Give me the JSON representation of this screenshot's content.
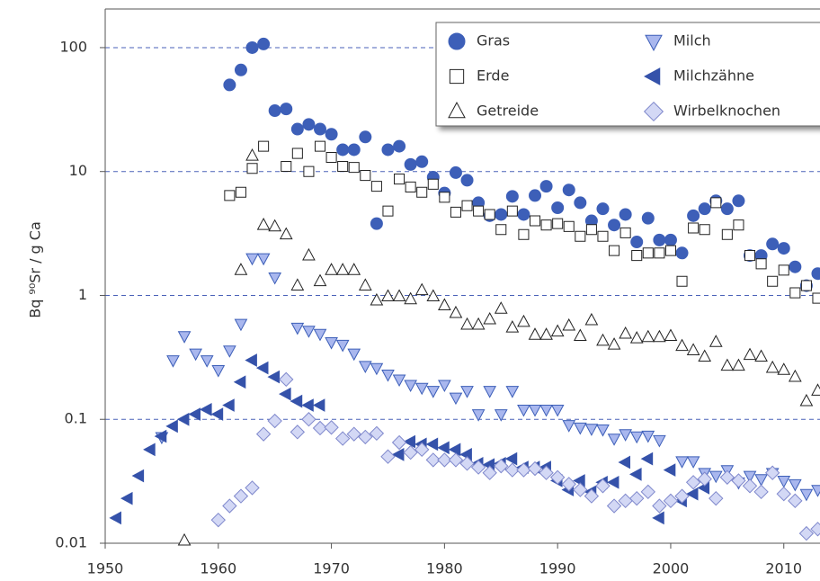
{
  "chart_data": {
    "type": "scatter",
    "y_label": "Bq ⁹⁰Sr / g Ca",
    "log_y": true,
    "grid": true,
    "legend": "upper right",
    "xlim": [
      1950,
      2013.2
    ],
    "xticks": [
      1950,
      1960,
      1970,
      1980,
      1990,
      2000,
      2010
    ],
    "ylim": [
      0.01,
      205
    ],
    "yticks": [
      0.01,
      0.1,
      1,
      10,
      100
    ],
    "series": [
      {
        "name": "Gras",
        "marker": "circle",
        "color": "#3d5fb8",
        "x": [
          1961,
          1962,
          1963,
          1964,
          1965,
          1966,
          1967,
          1968,
          1969,
          1970,
          1971,
          1972,
          1973,
          1974,
          1975,
          1976,
          1977,
          1978,
          1979,
          1980,
          1981,
          1982,
          1983,
          1984,
          1985,
          1986,
          1987,
          1988,
          1989,
          1990,
          1991,
          1992,
          1993,
          1994,
          1995,
          1996,
          1997,
          1998,
          1999,
          2000,
          2001,
          2002,
          2003,
          2004,
          2005,
          2006,
          2007,
          2008,
          2009,
          2010,
          2011,
          2012,
          2013
        ],
        "values": [
          50,
          66,
          100,
          107,
          31,
          32,
          22,
          24,
          22,
          20,
          15,
          15,
          19,
          3.8,
          15,
          16,
          11.4,
          12,
          9,
          6.7,
          9.8,
          8.5,
          5.6,
          4.4,
          4.5,
          6.3,
          4.5,
          6.4,
          7.6,
          5.1,
          7.1,
          5.6,
          4.0,
          5.0,
          3.7,
          4.5,
          2.7,
          4.2,
          2.8,
          2.8,
          2.2,
          4.4,
          5.0,
          5.8,
          5.0,
          5.8,
          2.1,
          2.1,
          2.6,
          2.4,
          1.7,
          1.2,
          1.5
        ]
      },
      {
        "name": "Erde",
        "marker": "square",
        "color": "#ffffff",
        "x": [
          1961,
          1962,
          1963,
          1964,
          1966,
          1967,
          1968,
          1969,
          1970,
          1971,
          1972,
          1973,
          1974,
          1975,
          1976,
          1977,
          1978,
          1979,
          1980,
          1981,
          1982,
          1983,
          1984,
          1985,
          1986,
          1987,
          1988,
          1989,
          1990,
          1991,
          1992,
          1993,
          1994,
          1995,
          1996,
          1997,
          1998,
          1999,
          2000,
          2001,
          2002,
          2003,
          2004,
          2005,
          2006,
          2007,
          2008,
          2009,
          2010,
          2011,
          2012,
          2013
        ],
        "values": [
          6.4,
          6.8,
          10.6,
          16,
          11,
          14,
          10,
          16,
          13,
          11,
          10.8,
          9.3,
          7.6,
          4.8,
          8.7,
          7.5,
          6.8,
          7.9,
          6.2,
          4.7,
          5.3,
          4.8,
          4.5,
          3.4,
          4.8,
          3.1,
          4.0,
          3.7,
          3.8,
          3.6,
          3.0,
          3.4,
          3.0,
          2.3,
          3.2,
          2.1,
          2.2,
          2.2,
          2.3,
          1.3,
          3.5,
          3.4,
          5.6,
          3.1,
          3.7,
          2.1,
          1.8,
          1.3,
          1.6,
          1.05,
          1.2,
          0.95
        ]
      },
      {
        "name": "Getreide",
        "marker": "triangle-up",
        "color": "#ffffff",
        "x": [
          1957,
          1962,
          1963,
          1964,
          1965,
          1966,
          1967,
          1968,
          1969,
          1970,
          1971,
          1972,
          1973,
          1974,
          1975,
          1976,
          1977,
          1978,
          1979,
          1980,
          1981,
          1982,
          1983,
          1984,
          1985,
          1986,
          1987,
          1988,
          1989,
          1990,
          1991,
          1992,
          1993,
          1994,
          1995,
          1996,
          1997,
          1998,
          1999,
          2000,
          2001,
          2002,
          2003,
          2004,
          2005,
          2006,
          2007,
          2008,
          2009,
          2010,
          2011,
          2012,
          2013
        ],
        "values": [
          0.0105,
          1.6,
          13.4,
          3.7,
          3.6,
          3.1,
          1.2,
          2.1,
          1.3,
          1.6,
          1.6,
          1.6,
          1.2,
          0.91,
          0.98,
          0.98,
          0.93,
          1.1,
          0.98,
          0.83,
          0.72,
          0.58,
          0.58,
          0.64,
          0.78,
          0.55,
          0.61,
          0.48,
          0.48,
          0.51,
          0.57,
          0.47,
          0.63,
          0.43,
          0.4,
          0.49,
          0.45,
          0.46,
          0.46,
          0.47,
          0.39,
          0.36,
          0.32,
          0.42,
          0.27,
          0.27,
          0.33,
          0.32,
          0.26,
          0.25,
          0.22,
          0.14,
          0.17
        ]
      },
      {
        "name": "Milch",
        "marker": "triangle-down",
        "color": "#a9b7ee",
        "x": [
          1955,
          1956,
          1957,
          1958,
          1959,
          1960,
          1961,
          1962,
          1963,
          1964,
          1965,
          1967,
          1968,
          1969,
          1970,
          1971,
          1972,
          1973,
          1974,
          1975,
          1976,
          1977,
          1978,
          1979,
          1980,
          1981,
          1982,
          1983,
          1984,
          1985,
          1986,
          1987,
          1988,
          1989,
          1990,
          1991,
          1992,
          1993,
          1994,
          1995,
          1996,
          1997,
          1998,
          1999,
          2001,
          2002,
          2003,
          2004,
          2005,
          2006,
          2007,
          2008,
          2009,
          2010,
          2011,
          2012,
          2013
        ],
        "values": [
          0.072,
          0.3,
          0.47,
          0.34,
          0.3,
          0.25,
          0.36,
          0.59,
          2.0,
          2.0,
          1.4,
          0.55,
          0.52,
          0.49,
          0.42,
          0.4,
          0.34,
          0.27,
          0.26,
          0.23,
          0.21,
          0.19,
          0.18,
          0.17,
          0.19,
          0.15,
          0.17,
          0.11,
          0.17,
          0.11,
          0.17,
          0.12,
          0.12,
          0.12,
          0.12,
          0.09,
          0.086,
          0.084,
          0.083,
          0.07,
          0.076,
          0.073,
          0.074,
          0.068,
          0.046,
          0.046,
          0.037,
          0.035,
          0.039,
          0.031,
          0.035,
          0.033,
          0.037,
          0.032,
          0.03,
          0.025,
          0.027
        ]
      },
      {
        "name": "Milchzähne",
        "marker": "triangle-left",
        "color": "#3552aa",
        "x": [
          1951,
          1952,
          1953,
          1954,
          1955,
          1956,
          1957,
          1958,
          1959,
          1960,
          1961,
          1962,
          1963,
          1964,
          1965,
          1966,
          1967,
          1968,
          1969,
          1976,
          1977,
          1978,
          1979,
          1980,
          1981,
          1982,
          1983,
          1984,
          1985,
          1986,
          1987,
          1988,
          1989,
          1990,
          1991,
          1992,
          1993,
          1994,
          1995,
          1996,
          1997,
          1998,
          1999,
          2000,
          2001,
          2002,
          2003
        ],
        "values": [
          0.016,
          0.023,
          0.035,
          0.057,
          0.073,
          0.088,
          0.1,
          0.11,
          0.12,
          0.11,
          0.13,
          0.2,
          0.3,
          0.26,
          0.22,
          0.16,
          0.14,
          0.13,
          0.13,
          0.052,
          0.066,
          0.063,
          0.063,
          0.059,
          0.057,
          0.052,
          0.044,
          0.043,
          0.044,
          0.048,
          0.041,
          0.041,
          0.041,
          0.032,
          0.027,
          0.032,
          0.026,
          0.031,
          0.031,
          0.045,
          0.036,
          0.048,
          0.016,
          0.039,
          0.022,
          0.025,
          0.028
        ]
      },
      {
        "name": "Wirbelknochen",
        "marker": "diamond",
        "color": "#d3d8f5",
        "x": [
          1960,
          1961,
          1962,
          1963,
          1964,
          1965,
          1966,
          1967,
          1968,
          1969,
          1970,
          1971,
          1972,
          1973,
          1974,
          1975,
          1976,
          1977,
          1978,
          1979,
          1980,
          1981,
          1982,
          1983,
          1984,
          1985,
          1986,
          1987,
          1988,
          1989,
          1990,
          1991,
          1992,
          1993,
          1994,
          1995,
          1996,
          1997,
          1998,
          1999,
          2000,
          2001,
          2002,
          2003,
          2004,
          2005,
          2006,
          2007,
          2008,
          2009,
          2010,
          2011,
          2012,
          2013
        ],
        "values": [
          0.0154,
          0.02,
          0.024,
          0.028,
          0.076,
          0.097,
          0.21,
          0.079,
          0.1,
          0.085,
          0.086,
          0.07,
          0.076,
          0.072,
          0.077,
          0.05,
          0.065,
          0.054,
          0.057,
          0.047,
          0.047,
          0.047,
          0.044,
          0.041,
          0.037,
          0.042,
          0.039,
          0.039,
          0.04,
          0.037,
          0.034,
          0.03,
          0.027,
          0.024,
          0.029,
          0.02,
          0.022,
          0.023,
          0.026,
          0.02,
          0.022,
          0.024,
          0.031,
          0.033,
          0.023,
          0.034,
          0.032,
          0.029,
          0.026,
          0.037,
          0.025,
          0.022,
          0.012,
          0.013
        ]
      }
    ]
  }
}
